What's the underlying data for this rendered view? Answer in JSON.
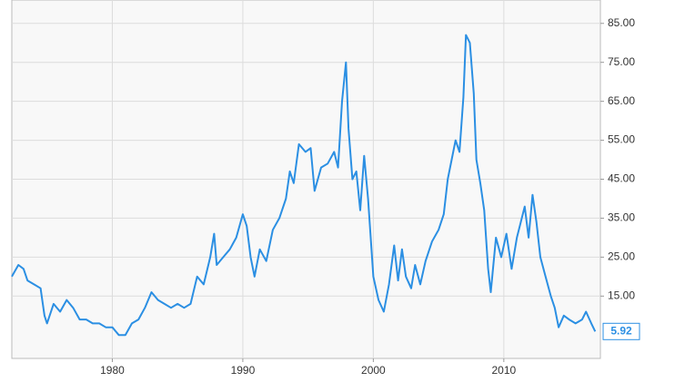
{
  "chart_data": {
    "type": "line",
    "x": [
      1972.3,
      1972.8,
      1973.2,
      1973.5,
      1974,
      1974.5,
      1974.8,
      1975,
      1975.5,
      1976,
      1976.5,
      1977,
      1977.5,
      1978,
      1978.5,
      1979,
      1979.5,
      1980,
      1980.5,
      1981,
      1981.5,
      1982,
      1982.5,
      1983,
      1983.5,
      1984,
      1984.5,
      1985,
      1985.5,
      1986,
      1986.5,
      1987,
      1987.5,
      1987.8,
      1988,
      1988.5,
      1989,
      1989.5,
      1990,
      1990.3,
      1990.6,
      1990.9,
      1991.3,
      1991.8,
      1992.3,
      1992.8,
      1993.3,
      1993.6,
      1993.9,
      1994.3,
      1994.8,
      1995.2,
      1995.5,
      1996,
      1996.5,
      1997,
      1997.3,
      1997.6,
      1997.9,
      1998.1,
      1998.4,
      1998.7,
      1999,
      1999.3,
      1999.6,
      2000,
      2000.4,
      2000.8,
      2001.2,
      2001.6,
      2001.9,
      2002.2,
      2002.5,
      2002.9,
      2003.2,
      2003.6,
      2004,
      2004.5,
      2005,
      2005.4,
      2005.7,
      2006,
      2006.3,
      2006.6,
      2006.9,
      2007.1,
      2007.4,
      2007.7,
      2007.9,
      2008.2,
      2008.5,
      2008.8,
      2009,
      2009.4,
      2009.8,
      2010.2,
      2010.6,
      2011,
      2011.3,
      2011.6,
      2011.9,
      2012.2,
      2012.5,
      2012.8,
      2013.2,
      2013.6,
      2013.9,
      2014.2,
      2014.6,
      2015,
      2015.5,
      2016,
      2016.3,
      2016.7,
      2017
    ],
    "series": [
      {
        "color": "#2b8fe3",
        "values": [
          20,
          23,
          22,
          19,
          18,
          17,
          10,
          8,
          13,
          11,
          14,
          12,
          9,
          9,
          8,
          8,
          7,
          7,
          5,
          5,
          8,
          9,
          12,
          16,
          14,
          13,
          12,
          13,
          12,
          13,
          20,
          18,
          25,
          31,
          23,
          25,
          27,
          30,
          36,
          33,
          25,
          20,
          27,
          24,
          32,
          35,
          40,
          47,
          44,
          54,
          52,
          53,
          42,
          48,
          49,
          52,
          48,
          65,
          75,
          58,
          45,
          47,
          37,
          51,
          40,
          20,
          14,
          11,
          18,
          28,
          19,
          27,
          20,
          17,
          23,
          18,
          24,
          29,
          32,
          36,
          45,
          50,
          55,
          52,
          66,
          82,
          80,
          67,
          50,
          44,
          37,
          22,
          16,
          30,
          25,
          31,
          22,
          30,
          34,
          38,
          30,
          41,
          34,
          25,
          20,
          15,
          12,
          7,
          10,
          9,
          8,
          9,
          11,
          8,
          5.92
        ]
      }
    ],
    "xlim": [
      1972.3,
      2017.4
    ],
    "xticks": [
      1980,
      1990,
      2000,
      2010
    ],
    "ylim": [
      -1,
      91
    ],
    "yticks": [
      {
        "value": 15,
        "label": "15.00"
      },
      {
        "value": 25,
        "label": "25.00"
      },
      {
        "value": 35,
        "label": "35.00"
      },
      {
        "value": 45,
        "label": "45.00"
      },
      {
        "value": 55,
        "label": "55.00"
      },
      {
        "value": 65,
        "label": "65.00"
      },
      {
        "value": 75,
        "label": "75.00"
      },
      {
        "value": 85,
        "label": "85.00"
      }
    ],
    "grid": true
  }
}
